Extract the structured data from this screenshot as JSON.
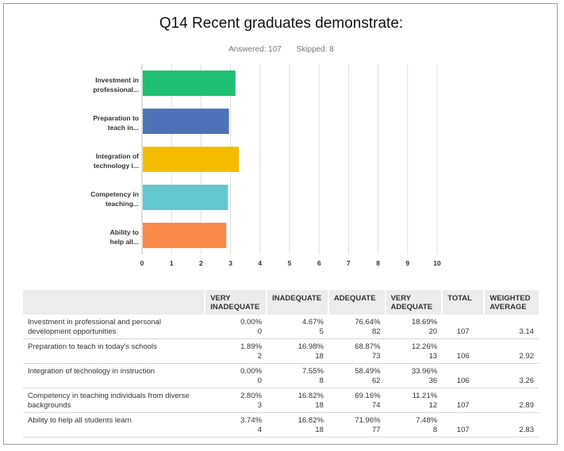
{
  "header": {
    "title": "Q14 Recent graduates demonstrate:",
    "answered": "Answered: 107",
    "skipped": "Skipped: 8"
  },
  "chart_data": {
    "type": "bar",
    "orientation": "horizontal",
    "categories": [
      "Investment in professional...",
      "Preparation to teach in...",
      "Integration of technology i...",
      "Competency in teaching...",
      "Ability to help all..."
    ],
    "category_lines": [
      [
        "Investment in",
        "professional..."
      ],
      [
        "Preparation to",
        "teach in..."
      ],
      [
        "Integration of",
        "technology i..."
      ],
      [
        "Competency in",
        "teaching..."
      ],
      [
        "Ability to",
        "help all..."
      ]
    ],
    "values": [
      3.14,
      2.92,
      3.26,
      2.89,
      2.83
    ],
    "colors": [
      "#1fbf73",
      "#4f73b8",
      "#f5bd00",
      "#63c8d1",
      "#fb8a4a"
    ],
    "xlim": [
      0,
      10
    ],
    "xticks": [
      "0",
      "1",
      "2",
      "3",
      "4",
      "5",
      "6",
      "7",
      "8",
      "9",
      "10"
    ],
    "grid": true,
    "xlabel": "",
    "ylabel": ""
  },
  "table": {
    "headers": [
      "",
      "VERY INADEQUATE",
      "INADEQUATE",
      "ADEQUATE",
      "VERY ADEQUATE",
      "TOTAL",
      "WEIGHTED AVERAGE"
    ],
    "rows": [
      {
        "label": "Investment in professional and personal development opportunities",
        "cells": [
          [
            "0.00%",
            "0"
          ],
          [
            "4.67%",
            "5"
          ],
          [
            "76.64%",
            "82"
          ],
          [
            "18.69%",
            "20"
          ]
        ],
        "total": "107",
        "avg": "3.14"
      },
      {
        "label": "Preparation to teach in today's schools",
        "cells": [
          [
            "1.89%",
            "2"
          ],
          [
            "16.98%",
            "18"
          ],
          [
            "68.87%",
            "73"
          ],
          [
            "12.26%",
            "13"
          ]
        ],
        "total": "106",
        "avg": "2.92"
      },
      {
        "label": "Integration of technology in instruction",
        "cells": [
          [
            "0.00%",
            "0"
          ],
          [
            "7.55%",
            "8"
          ],
          [
            "58.49%",
            "62"
          ],
          [
            "33.96%",
            "36"
          ]
        ],
        "total": "106",
        "avg": "3.26"
      },
      {
        "label": "Competency in teaching individuals from diverse backgrounds",
        "cells": [
          [
            "2.80%",
            "3"
          ],
          [
            "16.82%",
            "18"
          ],
          [
            "69.16%",
            "74"
          ],
          [
            "11.21%",
            "12"
          ]
        ],
        "total": "107",
        "avg": "2.89"
      },
      {
        "label": "Ability to help all students learn",
        "cells": [
          [
            "3.74%",
            "4"
          ],
          [
            "16.82%",
            "18"
          ],
          [
            "71.96%",
            "77"
          ],
          [
            "7.48%",
            "8"
          ]
        ],
        "total": "107",
        "avg": "2.83"
      }
    ]
  }
}
